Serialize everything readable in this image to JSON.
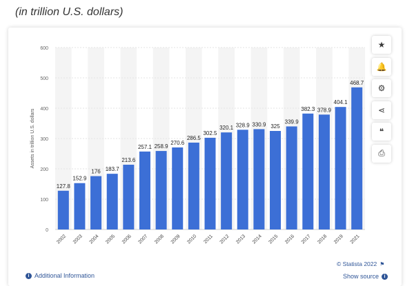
{
  "header": {
    "subtitle": "(in trillion U.S. dollars)"
  },
  "toolbar": [
    {
      "name": "star-icon",
      "glyph": "★"
    },
    {
      "name": "bell-icon",
      "glyph": "🔔"
    },
    {
      "name": "gear-icon",
      "glyph": "⚙"
    },
    {
      "name": "share-icon",
      "glyph": "⋖"
    },
    {
      "name": "quote-icon",
      "glyph": "❝"
    },
    {
      "name": "print-icon",
      "glyph": "⎙"
    }
  ],
  "footer": {
    "additional_info": "Additional Information",
    "copyright": "© Statista 2022",
    "show_source": "Show source"
  },
  "colors": {
    "bar": "#3c6fd6",
    "link": "#2f5597"
  },
  "chart_data": {
    "type": "bar",
    "categories": [
      "2002",
      "2003",
      "2004",
      "2005",
      "2006",
      "2007",
      "2008",
      "2009",
      "2010",
      "2011",
      "2012",
      "2013",
      "2014",
      "2015",
      "2016",
      "2017",
      "2018",
      "2019",
      "2021"
    ],
    "values": [
      127.8,
      152.9,
      176,
      183.7,
      213.6,
      257.1,
      258.9,
      270.6,
      286.5,
      302.5,
      320.1,
      328.9,
      330.9,
      325,
      339.9,
      382.3,
      378.9,
      404.1,
      468.7
    ],
    "value_labels": [
      "127.8",
      "152.9",
      "176",
      "183.7",
      "213.6",
      "257.1",
      "258.9",
      "270.6",
      "286.5",
      "302.5",
      "320.1",
      "328.9",
      "330.9",
      "325",
      "339.9",
      "382.3",
      "378.9",
      "404.1",
      "468.7"
    ],
    "ylabel": "Assets in trillion U.S. dollars",
    "xlabel": "",
    "ylim": [
      0,
      600
    ],
    "yticks": [
      0,
      100,
      200,
      300,
      400,
      500,
      600
    ],
    "grid": true
  }
}
